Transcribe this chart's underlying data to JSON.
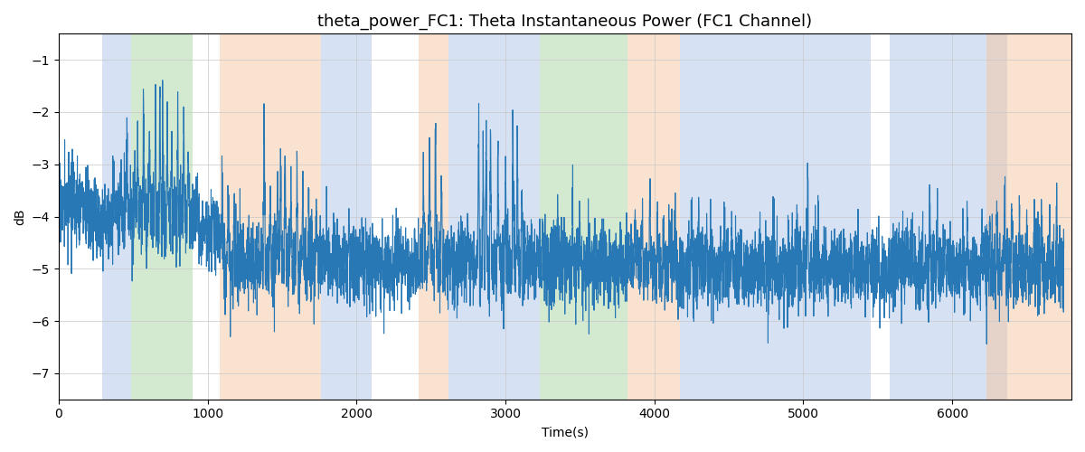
{
  "title": "theta_power_FC1: Theta Instantaneous Power (FC1 Channel)",
  "xlabel": "Time(s)",
  "ylabel": "dB",
  "ylim": [
    -7.5,
    -0.5
  ],
  "xlim": [
    0,
    6800
  ],
  "line_color": "#2878b5",
  "line_width": 0.8,
  "background_color": "#ffffff",
  "grid_color": "#c8c8c8",
  "bands": [
    {
      "xmin": 290,
      "xmax": 490,
      "color": "#aec6e8",
      "alpha": 0.5
    },
    {
      "xmin": 490,
      "xmax": 900,
      "color": "#a8d5a2",
      "alpha": 0.5
    },
    {
      "xmin": 1080,
      "xmax": 1760,
      "color": "#f5c6a0",
      "alpha": 0.5
    },
    {
      "xmin": 1760,
      "xmax": 2100,
      "color": "#aec6e8",
      "alpha": 0.5
    },
    {
      "xmin": 2420,
      "xmax": 2620,
      "color": "#f5c6a0",
      "alpha": 0.5
    },
    {
      "xmin": 2620,
      "xmax": 3120,
      "color": "#aec6e8",
      "alpha": 0.5
    },
    {
      "xmin": 3120,
      "xmax": 3230,
      "color": "#aec6e8",
      "alpha": 0.5
    },
    {
      "xmin": 3230,
      "xmax": 3820,
      "color": "#a8d5a2",
      "alpha": 0.5
    },
    {
      "xmin": 3820,
      "xmax": 4170,
      "color": "#f5c6a0",
      "alpha": 0.5
    },
    {
      "xmin": 4170,
      "xmax": 5450,
      "color": "#aec6e8",
      "alpha": 0.5
    },
    {
      "xmin": 5580,
      "xmax": 6370,
      "color": "#aec6e8",
      "alpha": 0.5
    },
    {
      "xmin": 6230,
      "xmax": 6800,
      "color": "#f5c6a0",
      "alpha": 0.5
    }
  ],
  "seed": 17,
  "title_fontsize": 13
}
